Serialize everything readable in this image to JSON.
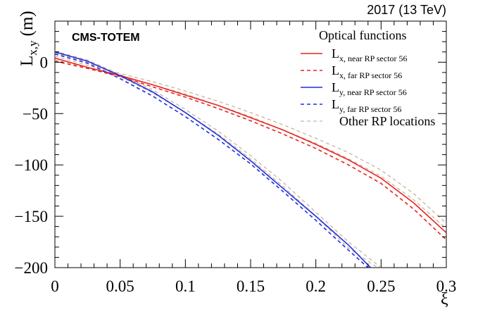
{
  "chart_data": {
    "type": "line",
    "title": "Optical functions",
    "energy_label": "2017 (13 TeV)",
    "experiment_label": "CMS-TOTEM",
    "xlabel": "ξ",
    "ylabel_main": "L",
    "ylabel_sub": "x,y",
    "ylabel_unit": "(m)",
    "xlim": [
      0,
      0.3
    ],
    "ylim": [
      -200,
      40
    ],
    "xticks": [
      0,
      0.05,
      0.1,
      0.15,
      0.2,
      0.25,
      0.3
    ],
    "xtick_labels": [
      "0",
      "0.05",
      "0.1",
      "0.15",
      "0.2",
      "0.25",
      "0.3"
    ],
    "yticks": [
      0,
      -50,
      -100,
      -150,
      -200
    ],
    "ytick_labels": [
      "0",
      "−50",
      "−100",
      "−150",
      "−200"
    ],
    "series": [
      {
        "name": "Lx, near RP sector 56",
        "main": "L",
        "sub": "x, near RP sector 56",
        "color": "#e8231f",
        "dash": "solid",
        "x": [
          0,
          0.025,
          0.05,
          0.075,
          0.1,
          0.125,
          0.15,
          0.175,
          0.2,
          0.225,
          0.25,
          0.275,
          0.3
        ],
        "y": [
          4,
          -5,
          -13,
          -22,
          -32,
          -42,
          -54,
          -66,
          -80,
          -95,
          -113,
          -137,
          -166
        ]
      },
      {
        "name": "Lx, far RP sector 56",
        "main": "L",
        "sub": "x, far RP sector 56",
        "color": "#e8231f",
        "dash": "dashed",
        "x": [
          0,
          0.025,
          0.05,
          0.075,
          0.1,
          0.125,
          0.15,
          0.175,
          0.2,
          0.225,
          0.25,
          0.275,
          0.3
        ],
        "y": [
          1,
          -6,
          -14,
          -24,
          -34,
          -45,
          -57,
          -70,
          -84,
          -100,
          -118,
          -143,
          -173
        ]
      },
      {
        "name": "Ly, near RP sector 56",
        "main": "L",
        "sub": "y, near RP sector 56",
        "color": "#1f2fe0",
        "dash": "solid",
        "x": [
          0,
          0.025,
          0.05,
          0.075,
          0.1,
          0.125,
          0.15,
          0.175,
          0.2,
          0.225,
          0.242
        ],
        "y": [
          10,
          1,
          -13,
          -29,
          -49,
          -71,
          -96,
          -123,
          -150,
          -178,
          -200
        ]
      },
      {
        "name": "Ly, far RP sector 56",
        "main": "L",
        "sub": "y, far RP sector 56",
        "color": "#1f2fe0",
        "dash": "dashed",
        "x": [
          0,
          0.025,
          0.05,
          0.075,
          0.1,
          0.125,
          0.15,
          0.175,
          0.2,
          0.225,
          0.24
        ],
        "y": [
          8,
          -1,
          -16,
          -33,
          -53,
          -75,
          -99,
          -126,
          -154,
          -183,
          -200
        ]
      },
      {
        "name": "Other RP locations (1)",
        "legend": "Other RP locations",
        "color": "#c9b49a",
        "dash": "dashed",
        "x": [
          0,
          0.025,
          0.05,
          0.075,
          0.1,
          0.125,
          0.15,
          0.175,
          0.2,
          0.225,
          0.25
        ],
        "y": [
          11,
          2,
          -12,
          -27,
          -46,
          -67,
          -91,
          -117,
          -146,
          -175,
          -200
        ]
      },
      {
        "name": "Other RP locations (2)",
        "color": "#c9b49a",
        "dash": "dashed",
        "x": [
          0,
          0.025,
          0.05,
          0.075,
          0.1,
          0.125,
          0.15,
          0.175,
          0.2,
          0.225,
          0.2474
        ],
        "y": [
          9,
          0,
          -14,
          -30,
          -49,
          -70,
          -94,
          -121,
          -150,
          -181,
          -200
        ]
      },
      {
        "name": "Other RP locations (3)",
        "color": "#c9b49a",
        "dash": "dashed",
        "x": [
          0,
          0.025,
          0.05,
          0.075,
          0.1,
          0.125,
          0.15,
          0.175,
          0.2,
          0.225,
          0.25,
          0.275,
          0.3
        ],
        "y": [
          6,
          -3,
          -11,
          -19,
          -28,
          -38,
          -49,
          -61,
          -74,
          -88,
          -105,
          -128,
          -157
        ]
      },
      {
        "name": "Other RP locations (4)",
        "color": "#c9b49a",
        "dash": "dashed",
        "x": [
          0,
          0.025,
          0.05,
          0.075,
          0.1,
          0.125,
          0.15,
          0.175,
          0.2,
          0.225,
          0.25,
          0.275,
          0.3
        ],
        "y": [
          2,
          -5,
          -13,
          -22,
          -31,
          -42,
          -53,
          -66,
          -79,
          -94,
          -111,
          -134,
          -162
        ]
      }
    ]
  }
}
